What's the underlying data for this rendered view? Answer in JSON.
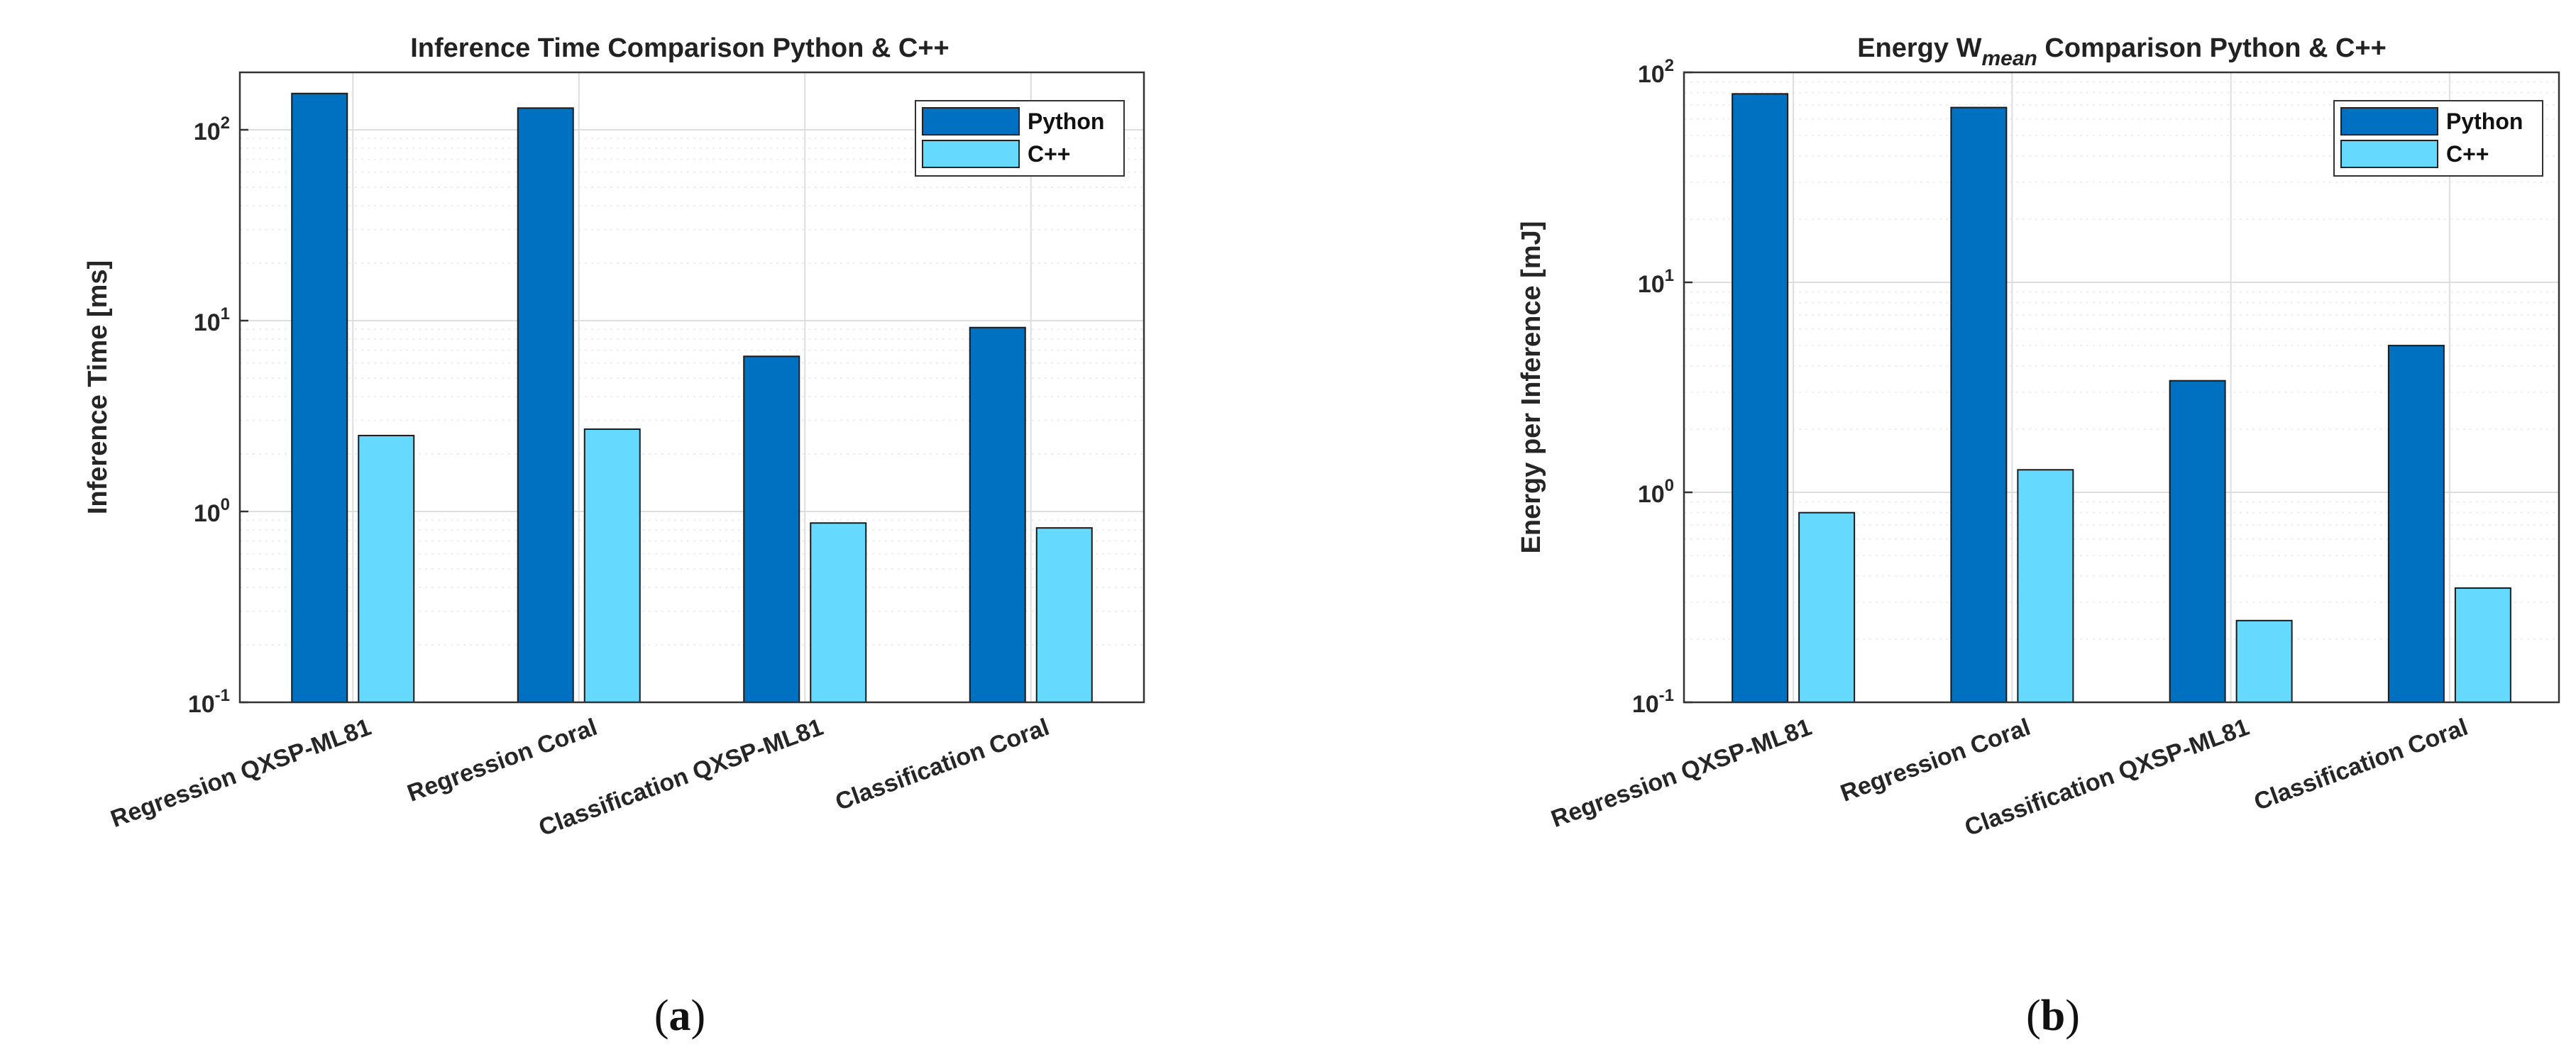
{
  "colors": {
    "python": "#0070C0",
    "cpp": "#66D9FF",
    "grid_major": "#dedede",
    "grid_minor": "#eeeeee",
    "axis": "#333333"
  },
  "chart_data": [
    {
      "type": "bar",
      "title": "Inference Time Comparison Python & C++",
      "ylabel": "Inference Time [ms]",
      "xlabel": "",
      "yscale": "log",
      "ylim": [
        0.1,
        200
      ],
      "yticks": [
        {
          "base": "10",
          "exp": "-1"
        },
        {
          "base": "10",
          "exp": "0"
        },
        {
          "base": "10",
          "exp": "1"
        },
        {
          "base": "10",
          "exp": "2"
        }
      ],
      "grid": true,
      "legend": "top-right",
      "categories": [
        "Regression QXSP-ML81",
        "Regression Coral",
        "Classification QXSP-ML81",
        "Classification Coral"
      ],
      "series": [
        {
          "name": "Python",
          "color": "#0070C0",
          "values": [
            155,
            130,
            6.5,
            9.2
          ]
        },
        {
          "name": "C++",
          "color": "#66D9FF",
          "values": [
            2.5,
            2.7,
            0.87,
            0.82
          ]
        }
      ],
      "sublabel": {
        "open": "(",
        "letter": "a",
        "close": ")"
      }
    },
    {
      "type": "bar",
      "title_parts": {
        "pre": "Energy W",
        "sub": "mean",
        "post": " Comparison Python & C++"
      },
      "ylabel": "Energy per Inference [mJ]",
      "xlabel": "",
      "yscale": "log",
      "ylim": [
        0.1,
        100
      ],
      "yticks": [
        {
          "base": "10",
          "exp": "-1"
        },
        {
          "base": "10",
          "exp": "0"
        },
        {
          "base": "10",
          "exp": "1"
        },
        {
          "base": "10",
          "exp": "2"
        }
      ],
      "grid": true,
      "legend": "top-right",
      "categories": [
        "Regression QXSP-ML81",
        "Regression Coral",
        "Classification QXSP-ML81",
        "Classification Coral"
      ],
      "series": [
        {
          "name": "Python",
          "color": "#0070C0",
          "values": [
            79,
            68,
            3.4,
            5.0
          ]
        },
        {
          "name": "C++",
          "color": "#66D9FF",
          "values": [
            0.8,
            1.28,
            0.245,
            0.35
          ]
        }
      ],
      "sublabel": {
        "open": "(",
        "letter": "b",
        "close": ")"
      }
    }
  ]
}
